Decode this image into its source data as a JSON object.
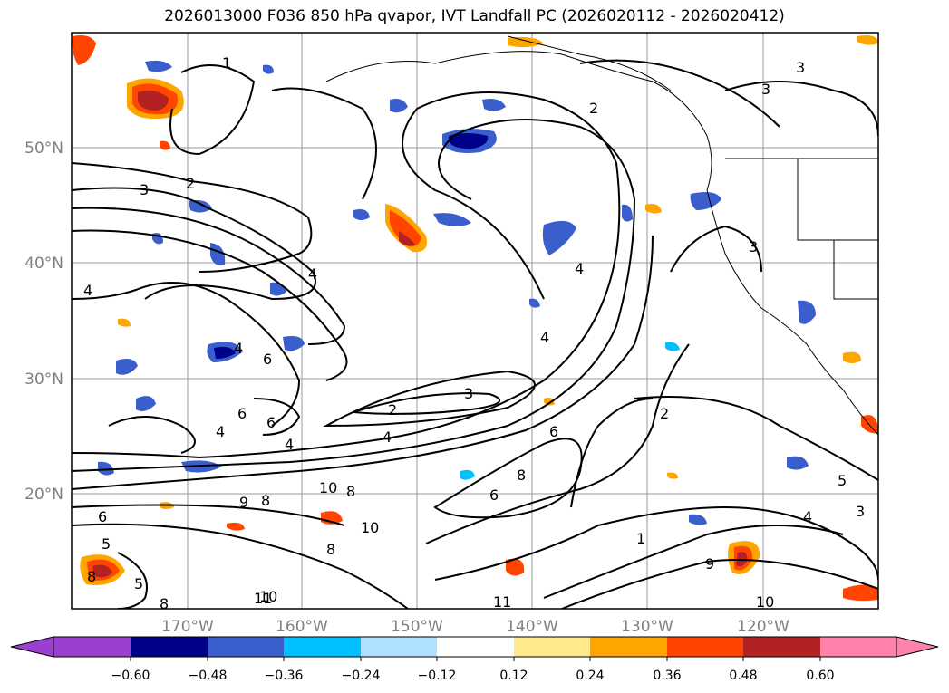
{
  "title": "2026013000 F036 850 hPa qvapor, IVT Landfall PC (2026020112 - 2026020412)",
  "latitude_labels": [
    "50°N",
    "40°N",
    "30°N",
    "20°N"
  ],
  "longitude_labels": [
    "170°W",
    "160°W",
    "150°W",
    "140°W",
    "130°W",
    "120°W"
  ],
  "contour_labels": [
    "1",
    "2",
    "3",
    "2",
    "3",
    "4",
    "4",
    "4",
    "6",
    "6",
    "4",
    "6",
    "4",
    "4",
    "2",
    "3",
    "4",
    "8",
    "10",
    "8",
    "10",
    "8",
    "11",
    "10",
    "8",
    "6",
    "9",
    "3",
    "4",
    "2",
    "5",
    "4",
    "9",
    "10",
    "11",
    "1",
    "3",
    "3",
    "5",
    "6",
    "8",
    "5",
    "8",
    "6"
  ],
  "colorbar": {
    "ticks": [
      "−0.60",
      "−0.48",
      "−0.36",
      "−0.24",
      "−0.12",
      "0.12",
      "0.24",
      "0.36",
      "0.48",
      "0.60"
    ],
    "colors": [
      "#9b3fd0",
      "#00008b",
      "#3a5fcd",
      "#00bfff",
      "#b0e0ff",
      "#ffffff",
      "#ffe98a",
      "#ffa500",
      "#ff4500",
      "#b22222",
      "#ff82ab"
    ]
  }
}
